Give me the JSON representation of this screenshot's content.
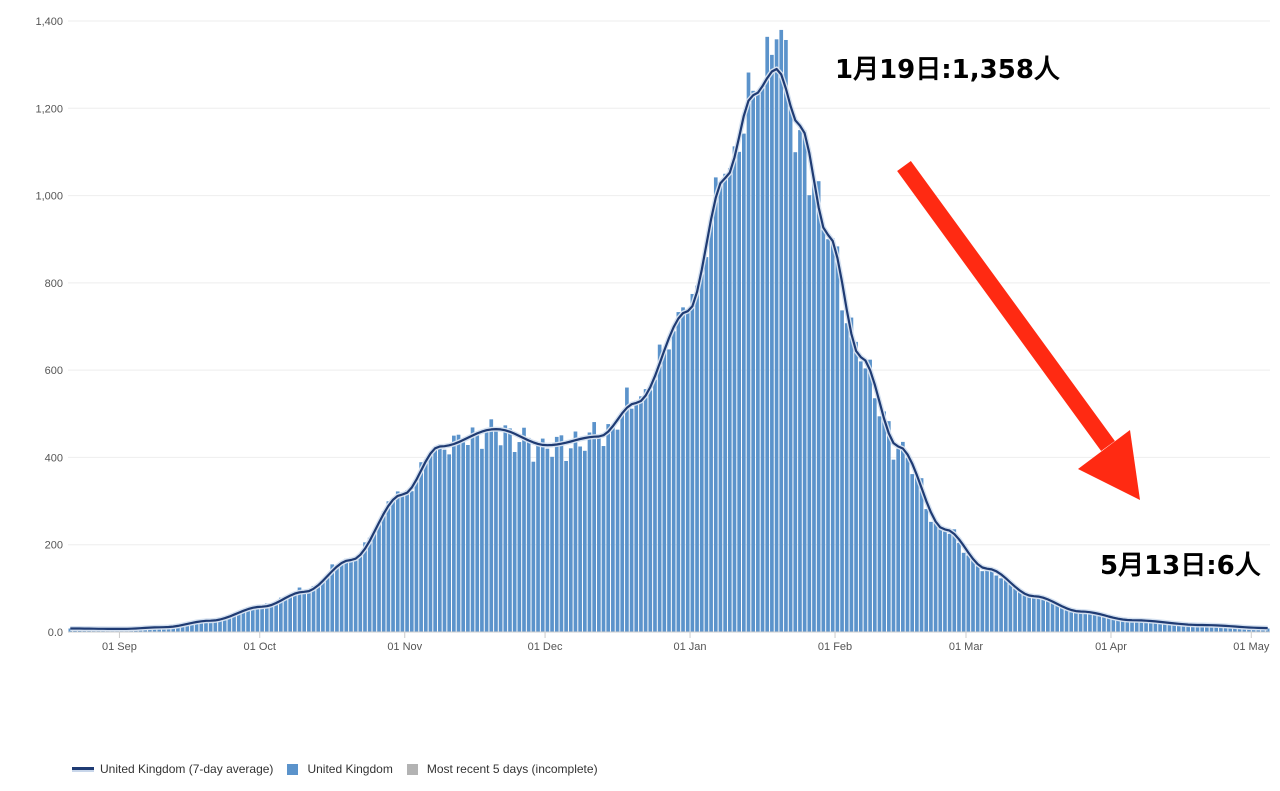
{
  "chart_data": {
    "type": "bar",
    "title": "",
    "xlabel": "",
    "ylabel": "",
    "ylim": [
      0,
      1400
    ],
    "yticks": [
      0,
      200,
      400,
      600,
      800,
      1000,
      1200,
      1400
    ],
    "ytick_labels": [
      "0.0",
      "200",
      "400",
      "600",
      "800",
      "1,000",
      "1,200",
      "1,400"
    ],
    "xlim": [
      "2020-08-21",
      "2021-05-04"
    ],
    "xticks": [
      {
        "date": "2020-09-01",
        "label": "01 Sep"
      },
      {
        "date": "2020-10-01",
        "label": "01 Oct"
      },
      {
        "date": "2020-11-01",
        "label": "01 Nov"
      },
      {
        "date": "2020-12-01",
        "label": "01 Dec"
      },
      {
        "date": "2021-01-01",
        "label": "01 Jan"
      },
      {
        "date": "2021-02-01",
        "label": "01 Feb"
      },
      {
        "date": "2021-03-01",
        "label": "01 Mar"
      },
      {
        "date": "2021-04-01",
        "label": "01 Apr"
      },
      {
        "date": "2021-05-01",
        "label": "01 May"
      }
    ],
    "grid": true,
    "legend_position": "bottom-left",
    "legend": [
      {
        "label": "United Kingdom (7-day average)",
        "kind": "line",
        "color": "#1f3b73"
      },
      {
        "label": "United Kingdom",
        "kind": "box",
        "color": "#5b93cb"
      },
      {
        "label": "Most recent 5 days (incomplete)",
        "kind": "box",
        "color": "#b3b3b3"
      }
    ],
    "colors": {
      "bars": "#5b93cb",
      "average_line": "#1f3b73",
      "average_halo": "#d5e1f0"
    },
    "daily_series": {
      "name": "United Kingdom",
      "points": [
        {
          "date": "2020-08-21",
          "value": 8
        },
        {
          "date": "2020-09-01",
          "value": 6
        },
        {
          "date": "2020-09-10",
          "value": 10
        },
        {
          "date": "2020-09-20",
          "value": 25
        },
        {
          "date": "2020-10-01",
          "value": 60
        },
        {
          "date": "2020-10-10",
          "value": 95
        },
        {
          "date": "2020-10-20",
          "value": 170
        },
        {
          "date": "2020-10-31",
          "value": 320
        },
        {
          "date": "2020-11-08",
          "value": 430
        },
        {
          "date": "2020-11-20",
          "value": 460
        },
        {
          "date": "2020-12-01",
          "value": 420
        },
        {
          "date": "2020-12-12",
          "value": 445
        },
        {
          "date": "2020-12-20",
          "value": 530
        },
        {
          "date": "2020-12-31",
          "value": 740
        },
        {
          "date": "2021-01-08",
          "value": 1050
        },
        {
          "date": "2021-01-14",
          "value": 1240
        },
        {
          "date": "2021-01-19",
          "value": 1358
        },
        {
          "date": "2021-01-24",
          "value": 1150
        },
        {
          "date": "2021-01-30",
          "value": 900
        },
        {
          "date": "2021-02-06",
          "value": 620
        },
        {
          "date": "2021-02-14",
          "value": 420
        },
        {
          "date": "2021-02-24",
          "value": 230
        },
        {
          "date": "2021-03-05",
          "value": 140
        },
        {
          "date": "2021-03-15",
          "value": 80
        },
        {
          "date": "2021-03-25",
          "value": 45
        },
        {
          "date": "2021-04-05",
          "value": 25
        },
        {
          "date": "2021-04-20",
          "value": 15
        },
        {
          "date": "2021-05-04",
          "value": 8
        }
      ]
    },
    "average_series": {
      "name": "United Kingdom (7-day average)",
      "points": [
        {
          "date": "2020-08-21",
          "value": 8
        },
        {
          "date": "2020-09-01",
          "value": 7
        },
        {
          "date": "2020-09-10",
          "value": 11
        },
        {
          "date": "2020-09-20",
          "value": 26
        },
        {
          "date": "2020-10-01",
          "value": 58
        },
        {
          "date": "2020-10-10",
          "value": 92
        },
        {
          "date": "2020-10-20",
          "value": 165
        },
        {
          "date": "2020-10-31",
          "value": 315
        },
        {
          "date": "2020-11-08",
          "value": 425
        },
        {
          "date": "2020-11-20",
          "value": 465
        },
        {
          "date": "2020-12-01",
          "value": 428
        },
        {
          "date": "2020-12-12",
          "value": 448
        },
        {
          "date": "2020-12-20",
          "value": 525
        },
        {
          "date": "2020-12-31",
          "value": 735
        },
        {
          "date": "2021-01-08",
          "value": 1040
        },
        {
          "date": "2021-01-14",
          "value": 1230
        },
        {
          "date": "2021-01-19",
          "value": 1290
        },
        {
          "date": "2021-01-24",
          "value": 1160
        },
        {
          "date": "2021-01-30",
          "value": 910
        },
        {
          "date": "2021-02-06",
          "value": 630
        },
        {
          "date": "2021-02-14",
          "value": 425
        },
        {
          "date": "2021-02-24",
          "value": 235
        },
        {
          "date": "2021-03-05",
          "value": 145
        },
        {
          "date": "2021-03-15",
          "value": 82
        },
        {
          "date": "2021-03-25",
          "value": 47
        },
        {
          "date": "2021-04-05",
          "value": 27
        },
        {
          "date": "2021-04-20",
          "value": 16
        },
        {
          "date": "2021-05-04",
          "value": 9
        }
      ]
    },
    "annotations": {
      "peak": "1月19日:1,358人",
      "latest": "5月13日:6人"
    }
  }
}
